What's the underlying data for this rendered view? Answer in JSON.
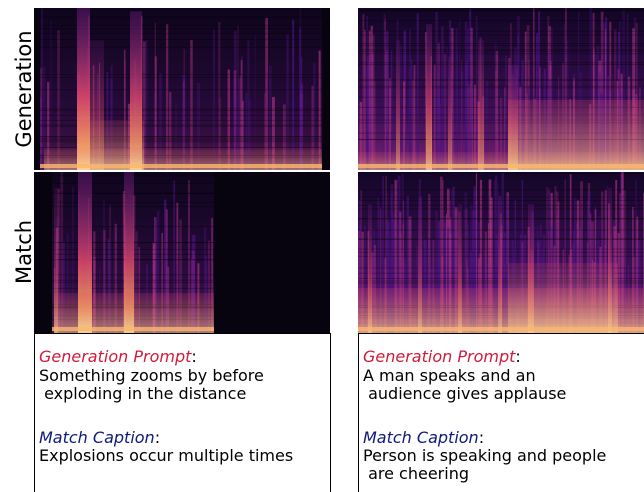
{
  "row_labels": [
    "Generation",
    "Match"
  ],
  "panels": [
    {
      "generation_prompt": {
        "label": "Generation Prompt",
        "separator": ":",
        "lines": [
          "Something zooms by before",
          " exploding in the distance"
        ]
      },
      "match_caption": {
        "label": "Match Caption",
        "separator": ":",
        "lines": [
          "Explosions occur multiple times"
        ]
      }
    },
    {
      "generation_prompt": {
        "label": "Generation Prompt",
        "separator": ":",
        "lines": [
          "A man speaks and an",
          " audience gives applause"
        ]
      },
      "match_caption": {
        "label": "Match Caption",
        "separator": ":",
        "lines": [
          "Person is speaking and people",
          " are cheering"
        ]
      }
    }
  ]
}
